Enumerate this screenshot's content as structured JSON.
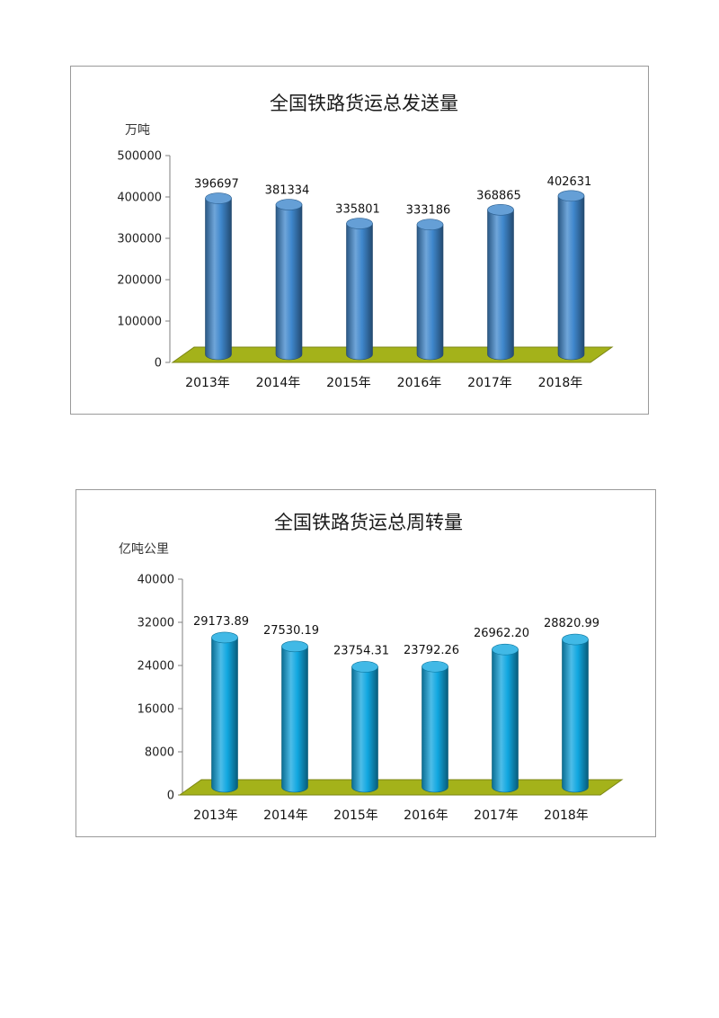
{
  "chart_data": [
    {
      "type": "bar",
      "title": "全国铁路货运总发送量",
      "unit_label": "万吨",
      "categories": [
        "2013年",
        "2014年",
        "2015年",
        "2016年",
        "2017年",
        "2018年"
      ],
      "values": [
        396697,
        381334,
        335801,
        333186,
        368865,
        402631
      ],
      "value_labels": [
        "396697",
        "381334",
        "335801",
        "333186",
        "368865",
        "402631"
      ],
      "ylim": [
        0,
        500000
      ],
      "yticks": [
        0,
        100000,
        200000,
        300000,
        400000,
        500000
      ],
      "ytick_labels": [
        "0",
        "100000",
        "200000",
        "300000",
        "400000",
        "500000"
      ],
      "bar_color": "#3f87cc",
      "floor_color": "#a4b21a",
      "grid": false,
      "legend": "none"
    },
    {
      "type": "bar",
      "title": "全国铁路货运总周转量",
      "unit_label": "亿吨公里",
      "categories": [
        "2013年",
        "2014年",
        "2015年",
        "2016年",
        "2017年",
        "2018年"
      ],
      "values": [
        29173.89,
        27530.19,
        23754.31,
        23792.26,
        26962.2,
        28820.99
      ],
      "value_labels": [
        "29173.89",
        "27530.19",
        "23754.31",
        "23792.26",
        "26962.20",
        "28820.99"
      ],
      "ylim": [
        0,
        40000
      ],
      "yticks": [
        0,
        8000,
        16000,
        24000,
        32000,
        40000
      ],
      "ytick_labels": [
        "0",
        "8000",
        "16000",
        "24000",
        "32000",
        "40000"
      ],
      "bar_color": "#11a7e0",
      "floor_color": "#a4b21a",
      "grid": false,
      "legend": "none"
    }
  ]
}
